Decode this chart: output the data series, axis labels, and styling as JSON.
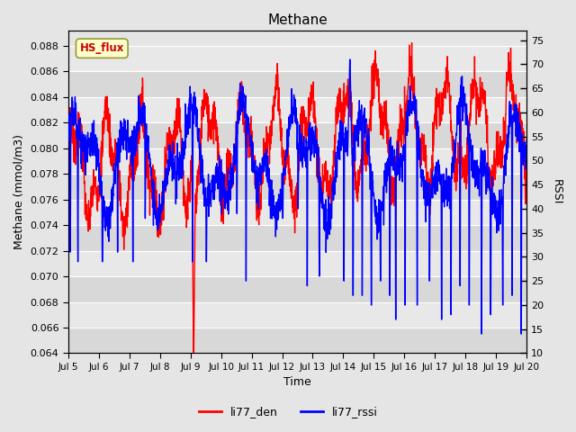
{
  "title": "Methane",
  "ylabel_left": "Methane (mmol/m3)",
  "ylabel_right": "RSSI",
  "xlabel": "Time",
  "ylim_left": [
    0.064,
    0.0892
  ],
  "ylim_right": [
    10,
    77
  ],
  "yticks_left": [
    0.064,
    0.066,
    0.068,
    0.07,
    0.072,
    0.074,
    0.076,
    0.078,
    0.08,
    0.082,
    0.084,
    0.086,
    0.088
  ],
  "yticks_right": [
    10,
    15,
    20,
    25,
    30,
    35,
    40,
    45,
    50,
    55,
    60,
    65,
    70,
    75
  ],
  "xtick_labels": [
    "Jul 5",
    "Jul 6",
    "Jul 7",
    "Jul 8",
    "Jul 9",
    "Jul 10",
    "Jul 11",
    "Jul 12",
    "Jul 13",
    "Jul 14",
    "Jul 15",
    "Jul 16",
    "Jul 17",
    "Jul 18",
    "Jul 19",
    "Jul 20"
  ],
  "color_red": "#ff0000",
  "color_blue": "#0000ff",
  "legend_labels": [
    "li77_den",
    "li77_rssi"
  ],
  "annotation_text": "HS_flux",
  "annotation_color": "#cc0000",
  "annotation_bg": "#ffffcc",
  "annotation_edge": "#999933",
  "fig_bg": "#e5e5e5",
  "band_dark": "#d8d8d8",
  "band_light": "#e8e8e8",
  "linewidth": 1.0,
  "n_days": 15,
  "pts_per_day": 144
}
